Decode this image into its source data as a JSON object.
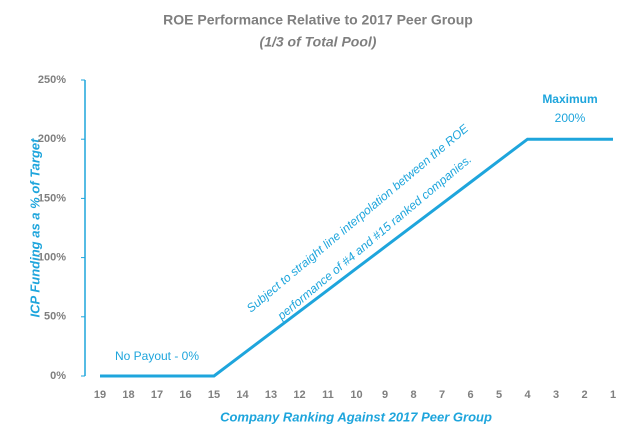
{
  "chart_data": {
    "type": "line",
    "title": "ROE Performance Relative to 2017 Peer Group",
    "subtitle": "(1/3 of Total Pool)",
    "xlabel": "Company Ranking Against 2017 Peer Group",
    "ylabel": "ICP Funding as a % of Target",
    "categories": [
      "19",
      "18",
      "17",
      "16",
      "15",
      "14",
      "13",
      "12",
      "11",
      "10",
      "9",
      "8",
      "7",
      "6",
      "5",
      "4",
      "3",
      "2",
      "1"
    ],
    "series": [
      {
        "color": "#1ea5dc",
        "values": [
          0,
          0,
          0,
          0,
          0,
          18.18,
          36.36,
          54.55,
          72.73,
          90.91,
          109.09,
          127.27,
          145.45,
          163.64,
          181.82,
          200,
          200,
          200,
          200
        ]
      }
    ],
    "ylim": [
      0,
      250
    ],
    "yticks": [
      {
        "value": 0,
        "label": "0%"
      },
      {
        "value": 50,
        "label": "50%"
      },
      {
        "value": 100,
        "label": "100%"
      },
      {
        "value": 150,
        "label": "150%"
      },
      {
        "value": 200,
        "label": "200%"
      },
      {
        "value": 250,
        "label": "250%"
      }
    ],
    "grid": false,
    "annotations": [
      "No Payout - 0%",
      "Maximum",
      "200%",
      "Subject to straight line interpolation between the ROE",
      "performance of #4 and #15 ranked companies."
    ]
  }
}
